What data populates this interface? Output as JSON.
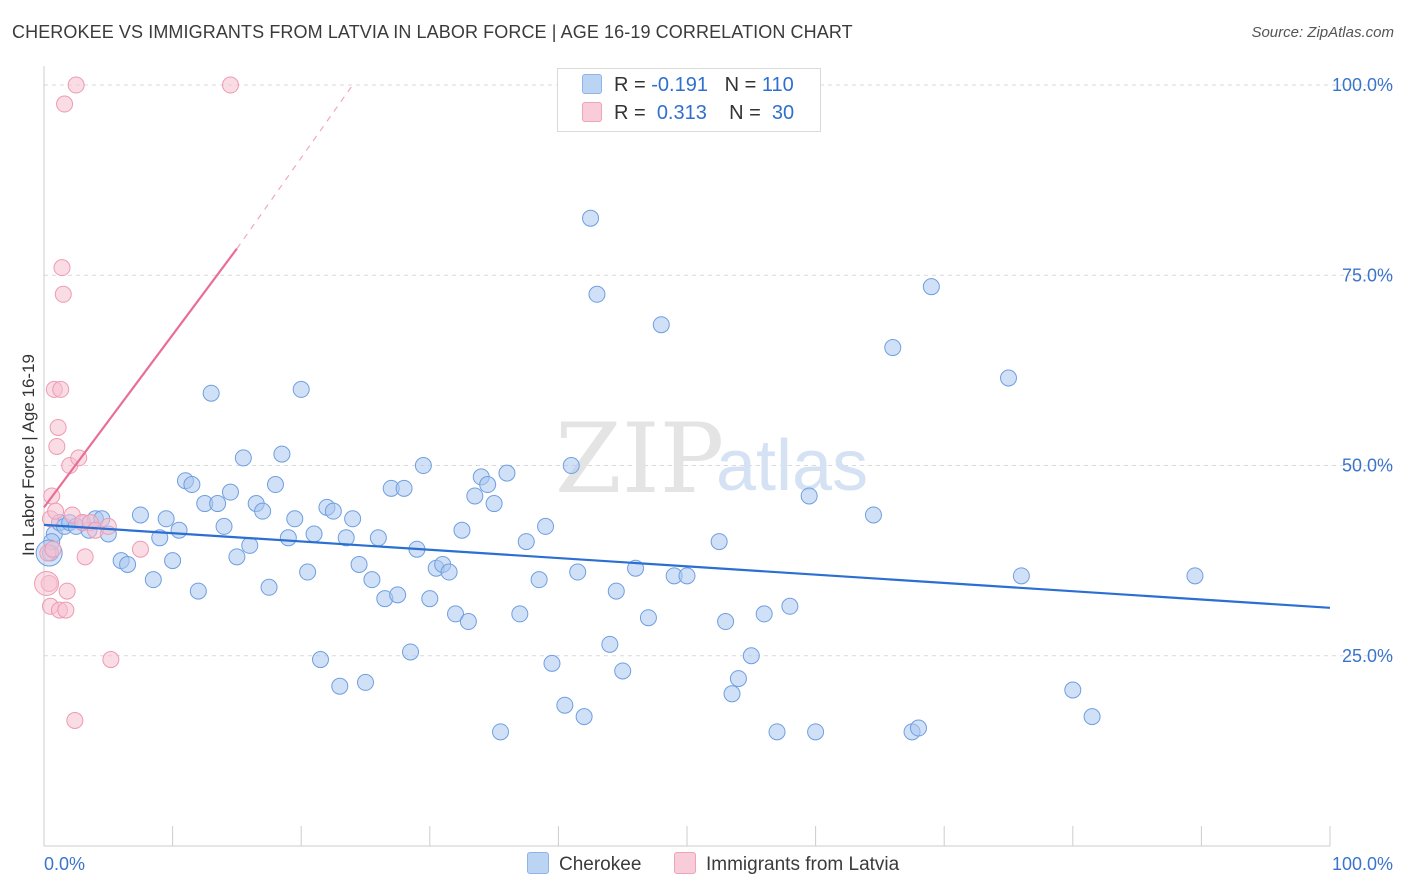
{
  "title": "CHEROKEE VS IMMIGRANTS FROM LATVIA IN LABOR FORCE | AGE 16-19 CORRELATION CHART",
  "source": "Source: ZipAtlas.com",
  "watermark": {
    "zip": "ZIP",
    "atlas": "atlas"
  },
  "legend": {
    "cherokee": {
      "r_label": "R =",
      "r_value": "-0.191",
      "n_label": "N =",
      "n_value": "110"
    },
    "latvia": {
      "r_label": "R =",
      "r_value": "0.313",
      "n_label": "N =",
      "n_value": "30"
    }
  },
  "bottom_legend": {
    "cherokee_label": "Cherokee",
    "latvia_label": "Immigrants from Latvia"
  },
  "colors": {
    "cherokee_fill": "#a9c6f0",
    "cherokee_stroke": "#6f9fe0",
    "cherokee_line": "#2a6fd1",
    "latvia_fill": "#f6bfcf",
    "latvia_stroke": "#ef9ab3",
    "latvia_line": "#e96d95",
    "axis_text": "#3b74cc",
    "grid": "#d9d9d9"
  },
  "chart_data": {
    "type": "scatter",
    "title": "CHEROKEE VS IMMIGRANTS FROM LATVIA IN LABOR FORCE | AGE 16-19 CORRELATION CHART",
    "xlabel": "",
    "ylabel": "In Labor Force | Age 16-19",
    "xlim": [
      0,
      100
    ],
    "ylim": [
      0,
      102.5
    ],
    "x_tick_labels": [
      "0.0%",
      "100.0%"
    ],
    "y_ticks": [
      25,
      50,
      75,
      100
    ],
    "y_tick_labels": [
      "25.0%",
      "50.0%",
      "75.0%",
      "100.0%"
    ],
    "grid": "horizontal dashed",
    "legend_position": "top-center",
    "series": [
      {
        "name": "Cherokee",
        "trend": {
          "x": [
            0,
            100
          ],
          "y": [
            42.2,
            31.3
          ]
        },
        "points": [
          [
            0.5,
            38.5
          ],
          [
            0.8,
            41
          ],
          [
            1.2,
            42.5
          ],
          [
            1.6,
            42
          ],
          [
            2.0,
            42.5
          ],
          [
            2.5,
            42
          ],
          [
            3.0,
            42.5
          ],
          [
            3.5,
            41.5
          ],
          [
            4.0,
            43
          ],
          [
            4.5,
            43
          ],
          [
            5.0,
            41
          ],
          [
            6.0,
            37.5
          ],
          [
            6.5,
            37
          ],
          [
            7.5,
            43.5
          ],
          [
            8.5,
            35
          ],
          [
            9.0,
            40.5
          ],
          [
            9.5,
            43
          ],
          [
            10.0,
            37.5
          ],
          [
            10.5,
            41.5
          ],
          [
            11.0,
            48
          ],
          [
            11.5,
            47.5
          ],
          [
            12.0,
            33.5
          ],
          [
            12.5,
            45
          ],
          [
            13.0,
            59.5
          ],
          [
            13.5,
            45
          ],
          [
            14.0,
            42
          ],
          [
            14.5,
            46.5
          ],
          [
            15.0,
            38
          ],
          [
            15.5,
            51
          ],
          [
            16.0,
            39.5
          ],
          [
            16.5,
            45
          ],
          [
            17.0,
            44
          ],
          [
            17.5,
            34
          ],
          [
            18.0,
            47.5
          ],
          [
            18.5,
            51.5
          ],
          [
            19.0,
            40.5
          ],
          [
            19.5,
            43
          ],
          [
            20.0,
            60
          ],
          [
            20.5,
            36
          ],
          [
            21.0,
            41
          ],
          [
            21.5,
            24.5
          ],
          [
            22.0,
            44.5
          ],
          [
            22.5,
            44
          ],
          [
            23.0,
            21
          ],
          [
            23.5,
            40.5
          ],
          [
            24.0,
            43
          ],
          [
            24.5,
            37
          ],
          [
            25.0,
            21.5
          ],
          [
            25.5,
            35
          ],
          [
            26.0,
            40.5
          ],
          [
            26.5,
            32.5
          ],
          [
            27.0,
            47
          ],
          [
            27.5,
            33
          ],
          [
            28.0,
            47
          ],
          [
            28.5,
            25.5
          ],
          [
            29.0,
            39
          ],
          [
            29.5,
            50
          ],
          [
            30.0,
            32.5
          ],
          [
            30.5,
            36.5
          ],
          [
            31.0,
            37
          ],
          [
            31.5,
            36
          ],
          [
            32.0,
            30.5
          ],
          [
            32.5,
            41.5
          ],
          [
            33.0,
            29.5
          ],
          [
            33.5,
            46
          ],
          [
            34.0,
            48.5
          ],
          [
            34.5,
            47.5
          ],
          [
            35.0,
            45
          ],
          [
            35.5,
            15
          ],
          [
            36.0,
            49
          ],
          [
            37.0,
            30.5
          ],
          [
            37.5,
            40
          ],
          [
            38.5,
            35
          ],
          [
            39.0,
            42
          ],
          [
            39.5,
            24
          ],
          [
            40.5,
            18.5
          ],
          [
            41.0,
            50
          ],
          [
            41.5,
            36
          ],
          [
            42.0,
            17
          ],
          [
            42.5,
            82.5
          ],
          [
            43.0,
            72.5
          ],
          [
            44.0,
            26.5
          ],
          [
            44.5,
            33.5
          ],
          [
            45.0,
            23
          ],
          [
            46.0,
            36.5
          ],
          [
            47.0,
            30
          ],
          [
            48.0,
            68.5
          ],
          [
            49.0,
            35.5
          ],
          [
            50.0,
            35.5
          ],
          [
            52.5,
            40
          ],
          [
            53.0,
            29.5
          ],
          [
            53.5,
            20
          ],
          [
            54.0,
            22
          ],
          [
            55.0,
            25
          ],
          [
            56.0,
            30.5
          ],
          [
            57.0,
            15
          ],
          [
            58.0,
            31.5
          ],
          [
            59.5,
            46
          ],
          [
            60.0,
            15
          ],
          [
            64.5,
            43.5
          ],
          [
            66.0,
            65.5
          ],
          [
            67.5,
            15
          ],
          [
            68.0,
            15.5
          ],
          [
            69.0,
            73.5
          ],
          [
            75.0,
            61.5
          ],
          [
            76.0,
            35.5
          ],
          [
            80.0,
            20.5
          ],
          [
            81.5,
            17
          ],
          [
            89.5,
            35.5
          ],
          [
            0.6,
            40
          ]
        ]
      },
      {
        "name": "Immigrants from Latvia",
        "trend": {
          "x": [
            0,
            15
          ],
          "y": [
            44.5,
            78.5
          ],
          "extended_to": [
            24,
            100
          ]
        },
        "points": [
          [
            0.3,
            38.5
          ],
          [
            0.4,
            34.5
          ],
          [
            0.5,
            43
          ],
          [
            0.5,
            31.5
          ],
          [
            0.6,
            46
          ],
          [
            0.7,
            39
          ],
          [
            0.8,
            60
          ],
          [
            0.9,
            44
          ],
          [
            1.0,
            52.5
          ],
          [
            1.1,
            55
          ],
          [
            1.2,
            31
          ],
          [
            1.3,
            60
          ],
          [
            1.4,
            76
          ],
          [
            1.5,
            72.5
          ],
          [
            1.6,
            97.5
          ],
          [
            1.7,
            31
          ],
          [
            1.8,
            33.5
          ],
          [
            2.0,
            50
          ],
          [
            2.2,
            43.5
          ],
          [
            2.4,
            16.5
          ],
          [
            2.5,
            100
          ],
          [
            2.7,
            51
          ],
          [
            3.0,
            42.5
          ],
          [
            3.2,
            38
          ],
          [
            3.6,
            42.5
          ],
          [
            4.0,
            41.5
          ],
          [
            5.0,
            42
          ],
          [
            5.2,
            24.5
          ],
          [
            7.5,
            39
          ],
          [
            14.5,
            100
          ]
        ]
      }
    ]
  }
}
